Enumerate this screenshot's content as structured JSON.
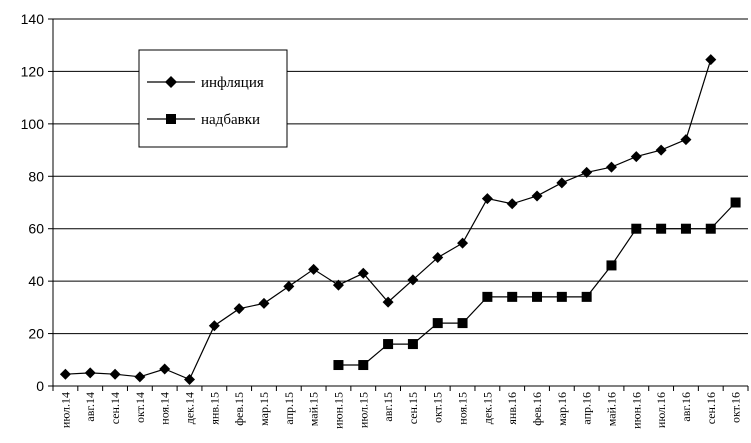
{
  "chart_data": {
    "type": "line",
    "title": "",
    "xlabel": "",
    "ylabel": "",
    "ylim": [
      0,
      140
    ],
    "yticks": [
      0,
      20,
      40,
      60,
      80,
      100,
      120,
      140
    ],
    "grid": "horizontal",
    "legend_position": "top-left",
    "categories": [
      "июл.14",
      "авг.14",
      "сен.14",
      "окт.14",
      "ноя.14",
      "дек.14",
      "янв.15",
      "фев.15",
      "мар.15",
      "апр.15",
      "май.15",
      "июн.15",
      "июл.15",
      "авг.15",
      "сен.15",
      "окт.15",
      "ноя.15",
      "дек.15",
      "янв.16",
      "фев.16",
      "мар.16",
      "апр.16",
      "май.16",
      "июн.16",
      "июл.16",
      "авг.16",
      "сен.16",
      "окт.16"
    ],
    "series": [
      {
        "name": "инфляция",
        "marker": "diamond",
        "values": [
          4.5,
          5,
          4.5,
          3.5,
          6.5,
          2.5,
          23,
          29.5,
          31.5,
          38,
          44.5,
          38.5,
          43,
          32,
          40.5,
          49,
          54.5,
          71.5,
          69.5,
          72.5,
          77.5,
          81.5,
          83.5,
          87.5,
          90,
          94,
          124.5,
          null
        ]
      },
      {
        "name": "надбавки",
        "marker": "square",
        "values": [
          null,
          null,
          null,
          null,
          null,
          null,
          null,
          null,
          null,
          null,
          null,
          8,
          8,
          16,
          16,
          24,
          24,
          34,
          34,
          34,
          34,
          34,
          46,
          60,
          60,
          60,
          60,
          70
        ]
      }
    ]
  }
}
